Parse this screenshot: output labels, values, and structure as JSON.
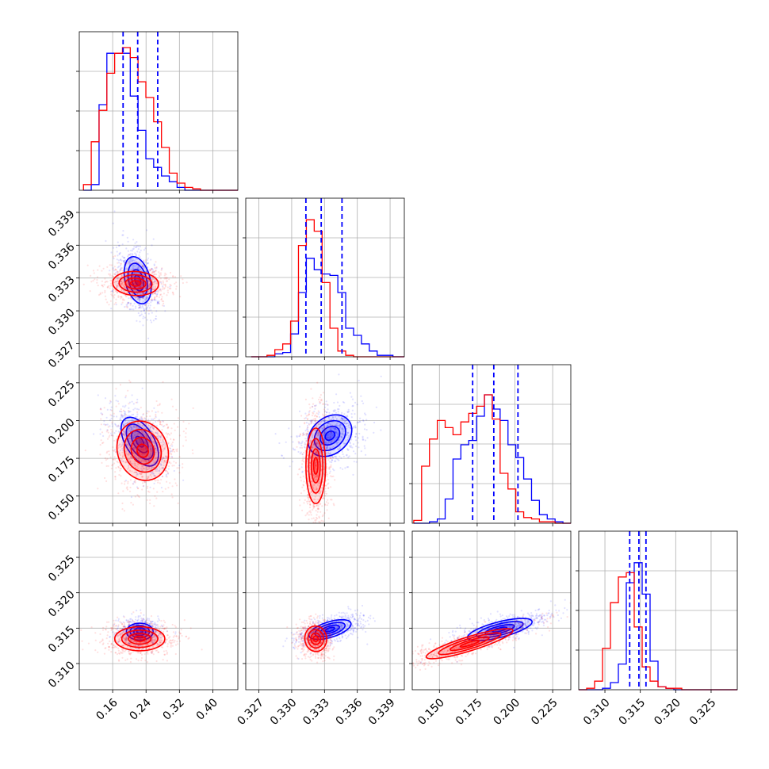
{
  "colors": {
    "blue": "#0000ff",
    "red": "#ff0000",
    "grid": "#b0b0b0"
  },
  "chart_data": {
    "type": "corner",
    "parameters": 4,
    "grid": true,
    "axes": [
      {
        "range": [
          0.08,
          0.46
        ],
        "ticks": [
          0.16,
          0.24,
          0.32,
          0.4
        ],
        "tick_labels": [
          "0.16",
          "0.24",
          "0.32",
          "0.40"
        ]
      },
      {
        "range": [
          0.3258,
          0.3403
        ],
        "ticks": [
          0.327,
          0.33,
          0.333,
          0.336,
          0.339
        ],
        "tick_labels": [
          "0.327",
          "0.330",
          "0.333",
          "0.336",
          "0.339"
        ]
      },
      {
        "range": [
          0.132,
          0.237
        ],
        "ticks": [
          0.15,
          0.175,
          0.2,
          0.225
        ],
        "tick_labels": [
          "0.150",
          "0.175",
          "0.200",
          "0.225"
        ]
      },
      {
        "range": [
          0.3063,
          0.3287
        ],
        "ticks": [
          0.31,
          0.315,
          0.32,
          0.325
        ],
        "tick_labels": [
          "0.310",
          "0.315",
          "0.320",
          "0.325"
        ]
      }
    ],
    "series": [
      {
        "color": "blue",
        "quantiles": [
          [
            0.185,
            0.22,
            0.268
          ],
          [
            0.3313,
            0.3327,
            0.3346
          ],
          [
            0.172,
            0.186,
            0.202
          ],
          [
            0.3135,
            0.3148,
            0.3158
          ]
        ],
        "centers": [
          0.225,
          0.3329,
          0.188,
          0.3148
        ],
        "histograms": [
          {
            "edges_from": 0.09,
            "bin": 0.0187,
            "counts": [
              0.0,
              0.04,
              0.6,
              0.96,
              0.96,
              0.96,
              0.66,
              0.42,
              0.22,
              0.16,
              0.1,
              0.06,
              0.02,
              0.0,
              0.0,
              0.0,
              0.0,
              0.0,
              0.0,
              0.0
            ]
          },
          {
            "edges_from": 0.3263,
            "bin": 0.00072,
            "counts": [
              0,
              0,
              0,
              0.02,
              0.03,
              0.16,
              0.45,
              0.69,
              0.61,
              0.58,
              0.57,
              0.45,
              0.2,
              0.15,
              0.09,
              0.04,
              0.01,
              0.01,
              0,
              0
            ]
          },
          {
            "edges_from": 0.133,
            "bin": 0.0052,
            "counts": [
              0,
              0,
              0.01,
              0.03,
              0.17,
              0.45,
              0.55,
              0.58,
              0.75,
              0.9,
              0.8,
              0.72,
              0.55,
              0.46,
              0.31,
              0.16,
              0.06,
              0.03,
              0.01,
              0.0
            ]
          },
          {
            "edges_from": 0.3063,
            "bin": 0.00112,
            "counts": [
              0,
              0,
              0,
              0.01,
              0.05,
              0.18,
              0.75,
              0.89,
              0.67,
              0.2,
              0.02,
              0.01,
              0,
              0,
              0,
              0,
              0,
              0,
              0,
              0
            ]
          }
        ]
      },
      {
        "color": "red",
        "histograms": [
          {
            "edges_from": 0.09,
            "bin": 0.0187,
            "counts": [
              0.04,
              0.34,
              0.56,
              0.82,
              0.96,
              1.0,
              0.93,
              0.76,
              0.65,
              0.48,
              0.3,
              0.12,
              0.05,
              0.02,
              0.01,
              0.0,
              0.0,
              0.0,
              0.0,
              0.0
            ]
          },
          {
            "edges_from": 0.3263,
            "bin": 0.00072,
            "counts": [
              0,
              0,
              0.01,
              0.05,
              0.09,
              0.25,
              0.78,
              0.96,
              0.88,
              0.52,
              0.2,
              0.04,
              0.01,
              0.0,
              0,
              0,
              0,
              0,
              0,
              0
            ]
          },
          {
            "edges_from": 0.133,
            "bin": 0.0052,
            "counts": [
              0.02,
              0.4,
              0.59,
              0.72,
              0.67,
              0.62,
              0.71,
              0.77,
              0.82,
              0.9,
              0.73,
              0.35,
              0.24,
              0.08,
              0.04,
              0.03,
              0.01,
              0.01,
              0.0,
              0.0
            ]
          },
          {
            "edges_from": 0.3063,
            "bin": 0.00112,
            "counts": [
              0,
              0.01,
              0.06,
              0.29,
              0.61,
              0.79,
              0.82,
              0.44,
              0.16,
              0.06,
              0.02,
              0.01,
              0.01,
              0,
              0,
              0,
              0,
              0,
              0,
              0
            ]
          }
        ]
      }
    ],
    "pairs": [
      {
        "row": 1,
        "col": 0,
        "blue": {
          "center": [
            0.22,
            0.3328
          ],
          "rx": 0.03,
          "ry": 0.0022,
          "tilt": 0.25
        },
        "red": {
          "center": [
            0.215,
            0.3325
          ],
          "rx": 0.055,
          "ry": 0.0011,
          "tilt": -0.05
        }
      },
      {
        "row": 2,
        "col": 0,
        "blue": {
          "center": [
            0.225,
            0.186
          ],
          "rx": 0.034,
          "ry": 0.018,
          "tilt": 0.55
        },
        "red": {
          "center": [
            0.232,
            0.18
          ],
          "rx": 0.06,
          "ry": 0.02,
          "tilt": 0.35
        }
      },
      {
        "row": 2,
        "col": 1,
        "blue": {
          "center": [
            0.3335,
            0.19
          ],
          "rx": 0.0022,
          "ry": 0.012,
          "tilt": 0.7
        },
        "red": {
          "center": [
            0.3322,
            0.17
          ],
          "rx": 0.0009,
          "ry": 0.025,
          "tilt": 0.0
        }
      },
      {
        "row": 3,
        "col": 0,
        "blue": {
          "center": [
            0.225,
            0.3145
          ],
          "rx": 0.032,
          "ry": 0.0012,
          "tilt": 0.0
        },
        "red": {
          "center": [
            0.225,
            0.3135
          ],
          "rx": 0.06,
          "ry": 0.0017,
          "tilt": 0.0
        }
      },
      {
        "row": 3,
        "col": 1,
        "blue": {
          "center": [
            0.3335,
            0.3148
          ],
          "rx": 0.002,
          "ry": 0.0011,
          "tilt": 0.3
        },
        "red": {
          "center": [
            0.3322,
            0.3135
          ],
          "rx": 0.001,
          "ry": 0.0018,
          "tilt": 0.1
        }
      },
      {
        "row": 3,
        "col": 2,
        "blue": {
          "center": [
            0.19,
            0.3148
          ],
          "rx": 0.022,
          "ry": 0.0011,
          "tilt": 0.25
        },
        "red": {
          "center": [
            0.17,
            0.3128
          ],
          "rx": 0.03,
          "ry": 0.001,
          "tilt": 0.3
        }
      }
    ]
  }
}
